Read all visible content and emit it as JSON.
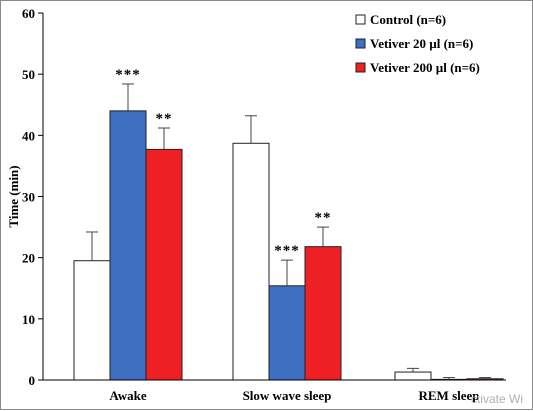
{
  "chart_data": {
    "type": "bar",
    "title": "",
    "xlabel": "",
    "ylabel": "Time (min)",
    "ylim": [
      0,
      60
    ],
    "yticks": [
      0,
      10,
      20,
      30,
      40,
      50,
      60
    ],
    "grid": false,
    "legend_position": "top-right",
    "categories": [
      "Awake",
      "Slow wave sleep",
      "REM sleep"
    ],
    "series": [
      {
        "name": "Control (n=6)",
        "color": "#ffffff",
        "values": [
          19.5,
          38.7,
          1.3
        ],
        "errors": [
          4.7,
          4.5,
          0.6
        ],
        "significance": [
          "",
          "",
          ""
        ]
      },
      {
        "name": "Vetiver 20 µl (n=6)",
        "color": "#3f6fc0",
        "values": [
          44.0,
          15.4,
          0.1
        ],
        "errors": [
          4.4,
          4.2,
          0.3
        ],
        "significance": [
          "***",
          "***",
          ""
        ]
      },
      {
        "name": "Vetiver 200 µl (n=6)",
        "color": "#ee2024",
        "values": [
          37.7,
          21.8,
          0.2
        ],
        "errors": [
          3.5,
          3.2,
          0.2
        ],
        "significance": [
          "**",
          "**",
          ""
        ]
      }
    ]
  },
  "watermark": "ctivate Wi"
}
